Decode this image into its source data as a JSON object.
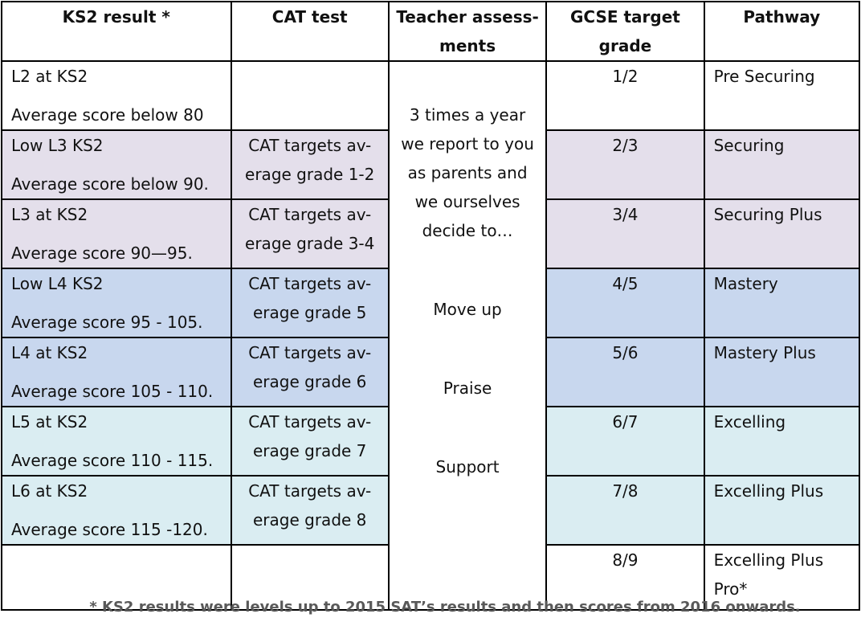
{
  "header": {
    "ks2": "KS2 result *",
    "cat": "CAT test",
    "teacher_1": "Teacher assess-",
    "teacher_2": "ments",
    "gcse_1": "GCSE target",
    "gcse_2": "grade",
    "pathway": "Pathway"
  },
  "rows": [
    {
      "ks2_1": "L2 at KS2",
      "ks2_2": "Average score below 80",
      "cat_1": "",
      "cat_2": "",
      "gcse": "1/2",
      "pathway_1": "Pre Securing",
      "pathway_2": ""
    },
    {
      "ks2_1": "Low L3 KS2",
      "ks2_2": "Average score below 90.",
      "cat_1": "CAT targets av-",
      "cat_2": "erage grade 1-2",
      "gcse": "2/3",
      "pathway_1": "Securing",
      "pathway_2": ""
    },
    {
      "ks2_1": "L3 at KS2",
      "ks2_2": "Average score 90—95.",
      "cat_1": "CAT targets av-",
      "cat_2": "erage grade 3-4",
      "gcse": "3/4",
      "pathway_1": "Securing Plus",
      "pathway_2": ""
    },
    {
      "ks2_1": "Low L4 KS2",
      "ks2_2": "Average score 95 - 105.",
      "cat_1": "CAT targets av-",
      "cat_2": "erage grade 5",
      "gcse": "4/5",
      "pathway_1": "Mastery",
      "pathway_2": ""
    },
    {
      "ks2_1": "L4 at KS2",
      "ks2_2": "Average score 105 - 110.",
      "cat_1": "CAT targets av-",
      "cat_2": "erage grade 6",
      "gcse": "5/6",
      "pathway_1": "Mastery Plus",
      "pathway_2": ""
    },
    {
      "ks2_1": "L5 at KS2",
      "ks2_2": "Average score 110 - 115.",
      "cat_1": "CAT targets av-",
      "cat_2": "erage grade 7",
      "gcse": "6/7",
      "pathway_1": "Excelling",
      "pathway_2": ""
    },
    {
      "ks2_1": "L6 at KS2",
      "ks2_2": "Average score 115 -120.",
      "cat_1": "CAT targets av-",
      "cat_2": "erage grade 8",
      "gcse": "7/8",
      "pathway_1": "Excelling Plus",
      "pathway_2": ""
    },
    {
      "ks2_1": "",
      "ks2_2": "",
      "cat_1": "",
      "cat_2": "",
      "gcse": "8/9",
      "pathway_1": "Excelling Plus",
      "pathway_2": "Pro*"
    }
  ],
  "teacher": {
    "intro": [
      "3 times a year",
      "we report to you",
      "as parents and",
      "we ourselves",
      "decide to…"
    ],
    "actions": [
      "Move up",
      "Praise",
      "Support"
    ]
  },
  "footnote": "* KS2 results were levels up to 2015 SAT’s results and then scores from 2016 onwards.",
  "colors": {
    "white": "#ffffff",
    "lilac": "#e4dfeb",
    "blue": "#c8d7ee",
    "aqua": "#daedf2"
  }
}
